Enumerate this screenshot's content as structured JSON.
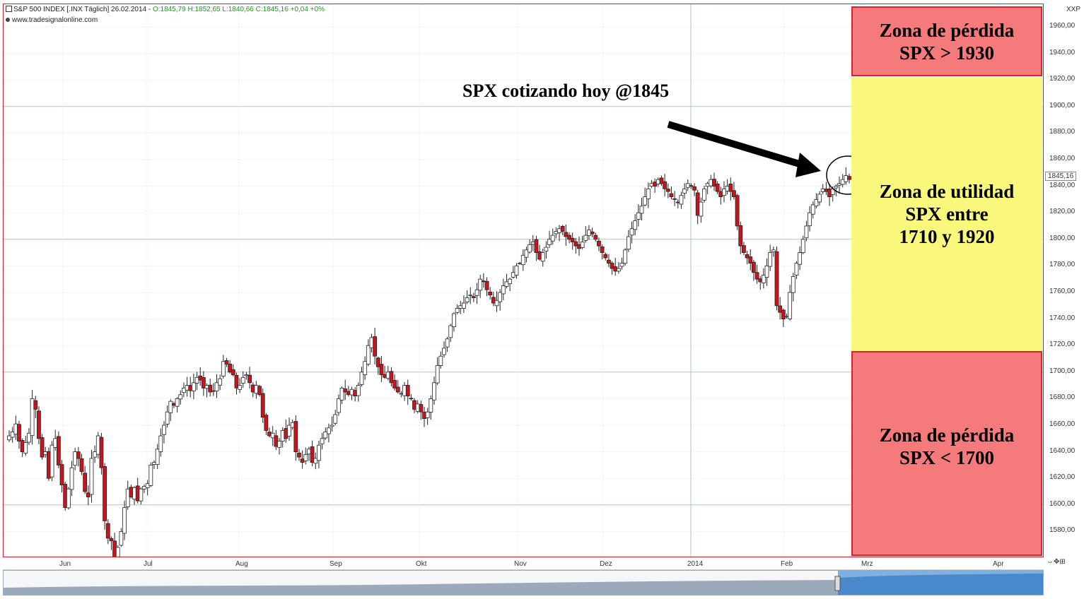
{
  "header": {
    "symbol_line": "S&P 500 INDEX [.INX  Täglich] 26.02.2014 - ",
    "ohlc": "O:1845,79 H:1852,65 L:1840,66 ",
    "change": "C:1845,16 +0,04 +0%",
    "source": "www.tradesignalonline.com",
    "ticker": "XXP"
  },
  "price_tag": "1845,16",
  "annotation": "SPX cotizando hoy @1845",
  "zones": {
    "top": {
      "line1": "Zona de pérdida",
      "line2": "SPX > 1930",
      "color": "#f47a7c"
    },
    "middle": {
      "line1": "Zona de utilidad",
      "line2": "SPX entre",
      "line3": "1710 y 1920",
      "color": "#f9f77c"
    },
    "bottom": {
      "line1": "Zona de pérdida",
      "line2": "SPX < 1700",
      "color": "#f47a7c"
    }
  },
  "colors": {
    "up": "#ffffff",
    "down": "#c8141e",
    "wick": "#222222",
    "grid": "#b8c8b8"
  },
  "chart_data": {
    "type": "candlestick",
    "title": "S&P 500 INDEX [.INX  Täglich] 26.02.2014",
    "ylim": [
      1560,
      1977
    ],
    "y_ticks": [
      "1960,00",
      "1940,00",
      "1920,00",
      "1900,00",
      "1880,00",
      "1860,00",
      "1840,00",
      "1820,00",
      "1800,00",
      "1780,00",
      "1760,00",
      "1740,00",
      "1720,00",
      "1700,00",
      "1680,00",
      "1660,00",
      "1640,00",
      "1620,00",
      "1600,00",
      "1580,00"
    ],
    "x_tick_labels": [
      "Jun",
      "Jul",
      "Aug",
      "Sep",
      "Okt",
      "Nov",
      "Dez",
      "2014",
      "Feb",
      "Mrz",
      "Apr"
    ],
    "series": [
      {
        "name": "Jun",
        "closes": [
          1652,
          1655,
          1661,
          1648,
          1640,
          1647,
          1654,
          1680,
          1672,
          1650,
          1636,
          1640,
          1620,
          1645,
          1650,
          1630,
          1615,
          1598,
          1612,
          1628,
          1640,
          1635,
          1625,
          1610,
          1606,
          1635,
          1640,
          1652,
          1628,
          1588,
          1575,
          1573,
          1558,
          1568,
          1580,
          1598,
          1612,
          1606,
          1613,
          1603,
          1612,
          1614,
          1616,
          1630
        ]
      },
      {
        "name": "Jul",
        "closes": [
          1632,
          1642,
          1652,
          1660,
          1670,
          1678,
          1675,
          1680,
          1683,
          1688,
          1690,
          1686,
          1692,
          1696,
          1694,
          1688,
          1690,
          1685,
          1686,
          1692,
          1695,
          1708,
          1706,
          1700,
          1698,
          1688,
          1690,
          1696,
          1698,
          1692,
          1685,
          1690
        ]
      },
      {
        "name": "Aug",
        "closes": [
          1683,
          1666,
          1656,
          1652,
          1654,
          1644,
          1648,
          1656,
          1650,
          1660,
          1662,
          1640,
          1636,
          1632,
          1638,
          1642,
          1632,
          1635,
          1645,
          1650,
          1655,
          1658,
          1660,
          1668,
          1680,
          1688,
          1685,
          1683,
          1687,
          1682,
          1690,
          1700,
          1708,
          1720,
          1726,
          1712,
          1704,
          1698,
          1696,
          1700,
          1692,
          1688,
          1685,
          1684,
          1690,
          1682,
          1680,
          1672,
          1676,
          1670,
          1665
        ]
      },
      {
        "name": "Okt",
        "closes": [
          1670,
          1680,
          1692,
          1705,
          1712,
          1718,
          1725,
          1735,
          1744,
          1748,
          1750,
          1752,
          1756,
          1758,
          1756,
          1762,
          1770,
          1768,
          1762,
          1758,
          1752,
          1754,
          1760,
          1765,
          1768,
          1770,
          1775,
          1780,
          1782,
          1788,
          1792,
          1796,
          1798,
          1790,
          1785,
          1790,
          1794,
          1800,
          1803,
          1806,
          1808,
          1806,
          1802,
          1800,
          1798,
          1795,
          1793,
          1798,
          1803,
          1807,
          1804,
          1800,
          1795,
          1790,
          1786,
          1782,
          1778,
          1776,
          1778,
          1782,
          1792,
          1802,
          1808,
          1814,
          1820,
          1825,
          1832,
          1838,
          1842,
          1840,
          1845,
          1842,
          1838,
          1836,
          1832,
          1830,
          1828,
          1833,
          1838,
          1842,
          1840,
          1837,
          1818,
          1828,
          1838,
          1842,
          1845,
          1840,
          1836,
          1832,
          1838,
          1840,
          1836,
          1832,
          1810,
          1795,
          1790,
          1786,
          1782,
          1775,
          1770,
          1768,
          1773,
          1780,
          1790,
          1792,
          1750,
          1745,
          1740,
          1742,
          1760,
          1772,
          1782,
          1790,
          1800,
          1810,
          1820,
          1826,
          1830,
          1834,
          1838,
          1836,
          1832,
          1838,
          1840,
          1842,
          1845,
          1848,
          1845
        ]
      }
    ]
  }
}
